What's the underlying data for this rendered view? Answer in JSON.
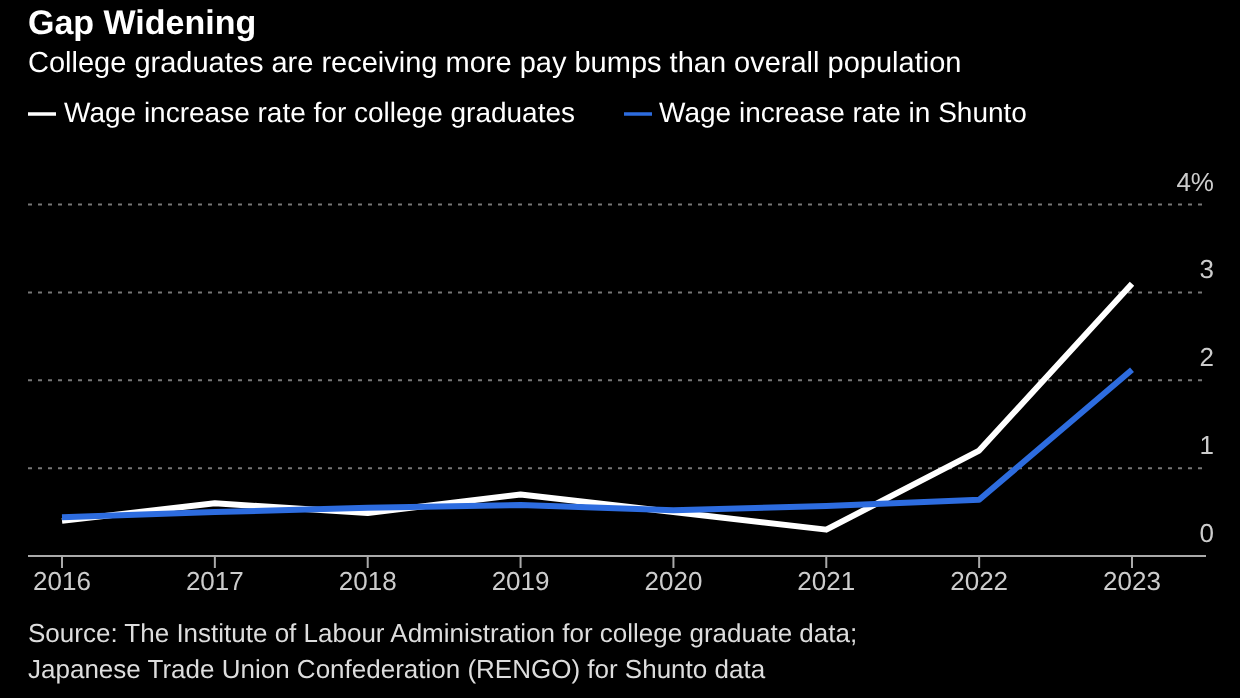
{
  "chart_data": {
    "type": "line",
    "title": "Gap Widening",
    "subtitle": "College graduates are receiving more pay bumps than overall population",
    "categories": [
      "2016",
      "2017",
      "2018",
      "2019",
      "2020",
      "2021",
      "2022",
      "2023"
    ],
    "series": [
      {
        "name": "Wage increase rate for college graduates",
        "color": "#ffffff",
        "values": [
          0.4,
          0.6,
          0.49,
          0.7,
          0.5,
          0.3,
          1.2,
          3.1
        ]
      },
      {
        "name": "Wage increase rate in Shunto",
        "color": "#2d6cdf",
        "values": [
          0.44,
          0.5,
          0.55,
          0.58,
          0.52,
          0.57,
          0.64,
          2.12
        ]
      }
    ],
    "ylim": [
      0,
      4
    ],
    "yticks": [
      0,
      1,
      2,
      3,
      {
        "value": 4,
        "label": "4%"
      }
    ],
    "grid": "y",
    "legend": "top left",
    "marker": "none",
    "line_style": "solid",
    "annotations": [
      "Source: The Institute of Labour Administration for college graduate data;",
      "Japanese Trade Union Confederation (RENGO) for Shunto data"
    ]
  }
}
